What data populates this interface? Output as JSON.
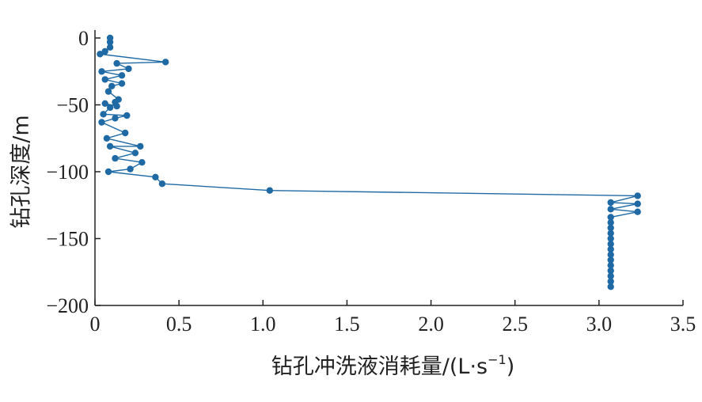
{
  "chart_data": {
    "type": "line",
    "xlabel": "钻孔冲洗液消耗量/(L·s",
    "xlabel_sup": "−1",
    "xlabel_close": ")",
    "ylabel": "钻孔深度/m",
    "xlim": [
      0,
      3.5
    ],
    "ylim": [
      -200,
      0
    ],
    "x_ticks": [
      0,
      0.5,
      1.0,
      1.5,
      2.0,
      2.5,
      3.0,
      3.5
    ],
    "x_tick_labels": [
      "0",
      "0.5",
      "1.0",
      "1.5",
      "2.0",
      "2.5",
      "3.0",
      "3.5"
    ],
    "y_ticks": [
      0,
      -50,
      -100,
      -150,
      -200
    ],
    "y_tick_labels": [
      "0",
      "−50",
      "−100",
      "−150",
      "−200"
    ],
    "grid": false,
    "series_color": "#1f6aa5",
    "series": [
      {
        "points": [
          [
            0.09,
            0
          ],
          [
            0.09,
            -3
          ],
          [
            0.09,
            -7
          ],
          [
            0.06,
            -10
          ],
          [
            0.03,
            -12
          ],
          [
            0.42,
            -18
          ],
          [
            0.13,
            -19
          ],
          [
            0.2,
            -23
          ],
          [
            0.04,
            -25
          ],
          [
            0.16,
            -28
          ],
          [
            0.06,
            -31
          ],
          [
            0.16,
            -34
          ],
          [
            0.1,
            -36
          ],
          [
            0.08,
            -40
          ],
          [
            0.14,
            -46
          ],
          [
            0.12,
            -48
          ],
          [
            0.13,
            -51
          ],
          [
            0.06,
            -49
          ],
          [
            0.09,
            -52
          ],
          [
            0.05,
            -57
          ],
          [
            0.19,
            -58
          ],
          [
            0.12,
            -60
          ],
          [
            0.04,
            -63
          ],
          [
            0.18,
            -71
          ],
          [
            0.07,
            -75
          ],
          [
            0.27,
            -81
          ],
          [
            0.09,
            -81
          ],
          [
            0.24,
            -86
          ],
          [
            0.12,
            -90
          ],
          [
            0.28,
            -93
          ],
          [
            0.21,
            -98
          ],
          [
            0.08,
            -100
          ],
          [
            0.36,
            -104
          ],
          [
            0.4,
            -109
          ],
          [
            1.04,
            -114
          ],
          [
            3.23,
            -118
          ],
          [
            3.07,
            -123
          ],
          [
            3.23,
            -124
          ],
          [
            3.07,
            -128
          ],
          [
            3.23,
            -130
          ],
          [
            3.07,
            -134
          ],
          [
            3.07,
            -138
          ],
          [
            3.07,
            -142
          ],
          [
            3.07,
            -146
          ],
          [
            3.07,
            -150
          ],
          [
            3.07,
            -154
          ],
          [
            3.07,
            -158
          ],
          [
            3.07,
            -162
          ],
          [
            3.07,
            -166
          ],
          [
            3.07,
            -170
          ],
          [
            3.07,
            -174
          ],
          [
            3.07,
            -178
          ],
          [
            3.07,
            -182
          ],
          [
            3.07,
            -186
          ]
        ]
      }
    ]
  }
}
